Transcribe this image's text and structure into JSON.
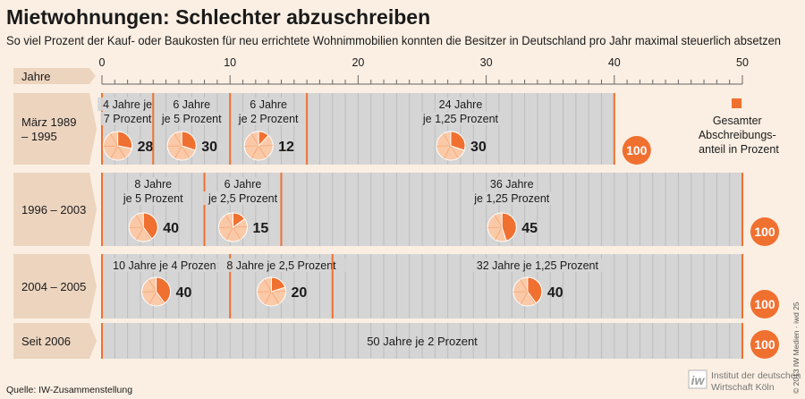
{
  "chart_data": {
    "type": "bar",
    "title": "Mietwohnungen: Schlechter abzuschreiben",
    "subtitle": "So viel Prozent der Kauf- oder Baukosten für neu errichtete Wohnimmobilien konnten die Besitzer in Deutschland pro Jahr maximal steuerlich absetzen",
    "xlabel": "Jahre",
    "xlim": [
      0,
      50
    ],
    "xticks": [
      0,
      10,
      20,
      30,
      40,
      50
    ],
    "legend": {
      "label": "Gesamter Abschreibungs- anteil in Prozent",
      "placement": "right"
    },
    "periods": [
      {
        "label": "März 1989 – 1995",
        "label_lines": [
          "März 1989",
          "– 1995"
        ],
        "total": "100",
        "segments": [
          {
            "years": 4,
            "rate": 7,
            "share": 28,
            "label_lines": [
              "4 Jahre je",
              "7 Prozent"
            ]
          },
          {
            "years": 6,
            "rate": 5,
            "share": 30,
            "label_lines": [
              "6 Jahre",
              "je 5 Prozent"
            ]
          },
          {
            "years": 6,
            "rate": 2,
            "share": 12,
            "label_lines": [
              "6 Jahre",
              "je 2 Prozent"
            ]
          },
          {
            "years": 24,
            "rate": 1.25,
            "share": 30,
            "label_lines": [
              "24 Jahre",
              "je 1,25 Prozent"
            ]
          }
        ]
      },
      {
        "label": "1996 – 2003",
        "label_lines": [
          "1996 – 2003"
        ],
        "total": "100",
        "segments": [
          {
            "years": 8,
            "rate": 5,
            "share": 40,
            "label_lines": [
              "8 Jahre",
              "je 5 Prozent"
            ]
          },
          {
            "years": 6,
            "rate": 2.5,
            "share": 15,
            "label_lines": [
              "6 Jahre",
              "je 2,5 Prozent"
            ]
          },
          {
            "years": 36,
            "rate": 1.25,
            "share": 45,
            "label_lines": [
              "36 Jahre",
              "je 1,25 Prozent"
            ]
          }
        ]
      },
      {
        "label": "2004 – 2005",
        "label_lines": [
          "2004 – 2005"
        ],
        "total": "100",
        "segments": [
          {
            "years": 10,
            "rate": 4,
            "share": 40,
            "label_lines": [
              "10 Jahre je 4 Prozent"
            ]
          },
          {
            "years": 8,
            "rate": 2.5,
            "share": 20,
            "label_lines": [
              "8 Jahre je 2,5 Prozent"
            ]
          },
          {
            "years": 32,
            "rate": 1.25,
            "share": 40,
            "label_lines": [
              "32 Jahre je 1,25 Prozent"
            ]
          }
        ]
      },
      {
        "label": "Seit 2006",
        "label_lines": [
          "Seit 2006"
        ],
        "total": "100",
        "segments": [
          {
            "years": 50,
            "rate": 2,
            "share": 100,
            "label_lines": [
              "50 Jahre je 2 Prozent"
            ]
          }
        ]
      }
    ]
  },
  "source": "Quelle: IW-Zusammenstellung",
  "publisher": "Institut der deutschen Wirtschaft Köln",
  "publisher_lines": [
    "Institut der deutschen",
    "Wirtschaft Köln"
  ],
  "publisher_mark": "iw",
  "copyright": "© 2013 IW Medien · iwd 25",
  "colors": {
    "orange": "#f07030",
    "pie_light": "#fac9a8",
    "pie_mid": "#f59a62",
    "band": "#d5d5d5",
    "band_line": "#bdbdbd",
    "label_box": "#ecd4bf",
    "background": "#fbefe3"
  }
}
